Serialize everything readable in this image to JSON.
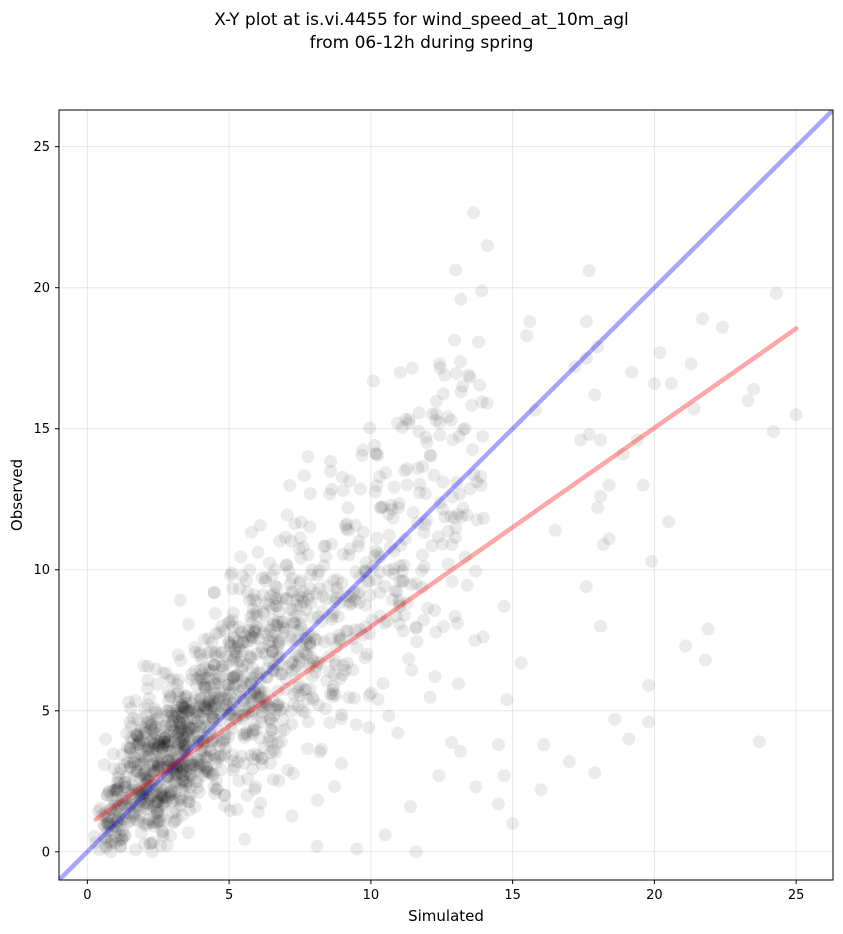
{
  "title": {
    "line1": "X-Y plot at is.vi.4455 for wind_speed_at_10m_agl",
    "line2": "from 06-12h during spring"
  },
  "chart_data": {
    "type": "scatter",
    "xlabel": "Simulated",
    "ylabel": "Observed",
    "xlim": [
      -1,
      26.3
    ],
    "ylim": [
      -1,
      26.3
    ],
    "xticks": [
      0,
      5,
      10,
      15,
      20,
      25
    ],
    "yticks": [
      0,
      5,
      10,
      15,
      20,
      25
    ],
    "grid": true,
    "point_color": "#000000",
    "point_opacity": 0.08,
    "one_to_one_line": {
      "color": "#0000ff",
      "opacity": 0.35,
      "x": [
        -1,
        26.3
      ],
      "y": [
        -1,
        26.3
      ]
    },
    "fit_line": {
      "color": "#ff0000",
      "opacity": 0.35,
      "x": [
        0.3,
        25.0
      ],
      "y": [
        1.15,
        18.55
      ]
    },
    "series": [
      {
        "n_points": 1500,
        "points": [
          [
            17.7,
            20.6
          ],
          [
            24.3,
            19.8
          ],
          [
            21.7,
            18.9
          ],
          [
            22.4,
            18.6
          ],
          [
            15.5,
            18.3
          ],
          [
            17.2,
            17.2
          ],
          [
            17.6,
            17.5
          ],
          [
            20.2,
            17.7
          ],
          [
            21.3,
            17.3
          ],
          [
            19.2,
            17.0
          ],
          [
            20.0,
            16.6
          ],
          [
            20.6,
            16.6
          ],
          [
            23.5,
            16.4
          ],
          [
            23.3,
            16.0
          ],
          [
            21.4,
            15.7
          ],
          [
            25.0,
            15.5
          ],
          [
            24.2,
            14.9
          ],
          [
            19.4,
            14.6
          ],
          [
            19.6,
            13.0
          ],
          [
            18.9,
            14.1
          ],
          [
            20.5,
            11.7
          ],
          [
            19.9,
            10.3
          ],
          [
            21.1,
            7.3
          ],
          [
            21.9,
            7.9
          ],
          [
            21.8,
            6.8
          ],
          [
            19.8,
            5.9
          ],
          [
            19.8,
            4.6
          ],
          [
            18.6,
            4.7
          ],
          [
            19.1,
            4.0
          ],
          [
            23.7,
            3.9
          ],
          [
            17.9,
            2.8
          ],
          [
            17.0,
            3.2
          ],
          [
            16.1,
            3.8
          ],
          [
            16.0,
            2.2
          ],
          [
            14.7,
            2.7
          ],
          [
            15.0,
            1.0
          ],
          [
            14.5,
            1.7
          ],
          [
            13.7,
            2.3
          ],
          [
            12.4,
            2.7
          ],
          [
            11.4,
            1.6
          ],
          [
            10.5,
            0.6
          ],
          [
            9.5,
            0.1
          ],
          [
            8.1,
            0.2
          ],
          [
            11.6,
            0.0
          ],
          [
            14.5,
            3.8
          ],
          [
            14.8,
            5.4
          ],
          [
            15.3,
            6.7
          ],
          [
            14.7,
            8.7
          ],
          [
            16.5,
            11.4
          ],
          [
            17.6,
            9.4
          ],
          [
            18.1,
            8.0
          ],
          [
            18.2,
            10.9
          ],
          [
            18.4,
            11.1
          ],
          [
            18.1,
            12.6
          ],
          [
            18.0,
            12.2
          ],
          [
            18.4,
            13.0
          ],
          [
            18.1,
            14.6
          ],
          [
            17.7,
            14.8
          ],
          [
            17.4,
            14.6
          ],
          [
            17.9,
            16.2
          ],
          [
            18.0,
            17.9
          ],
          [
            17.6,
            18.8
          ],
          [
            15.6,
            18.8
          ],
          [
            12.6,
            16.9
          ],
          [
            14.1,
            15.9
          ],
          [
            12.3,
            15.3
          ]
        ]
      }
    ]
  }
}
